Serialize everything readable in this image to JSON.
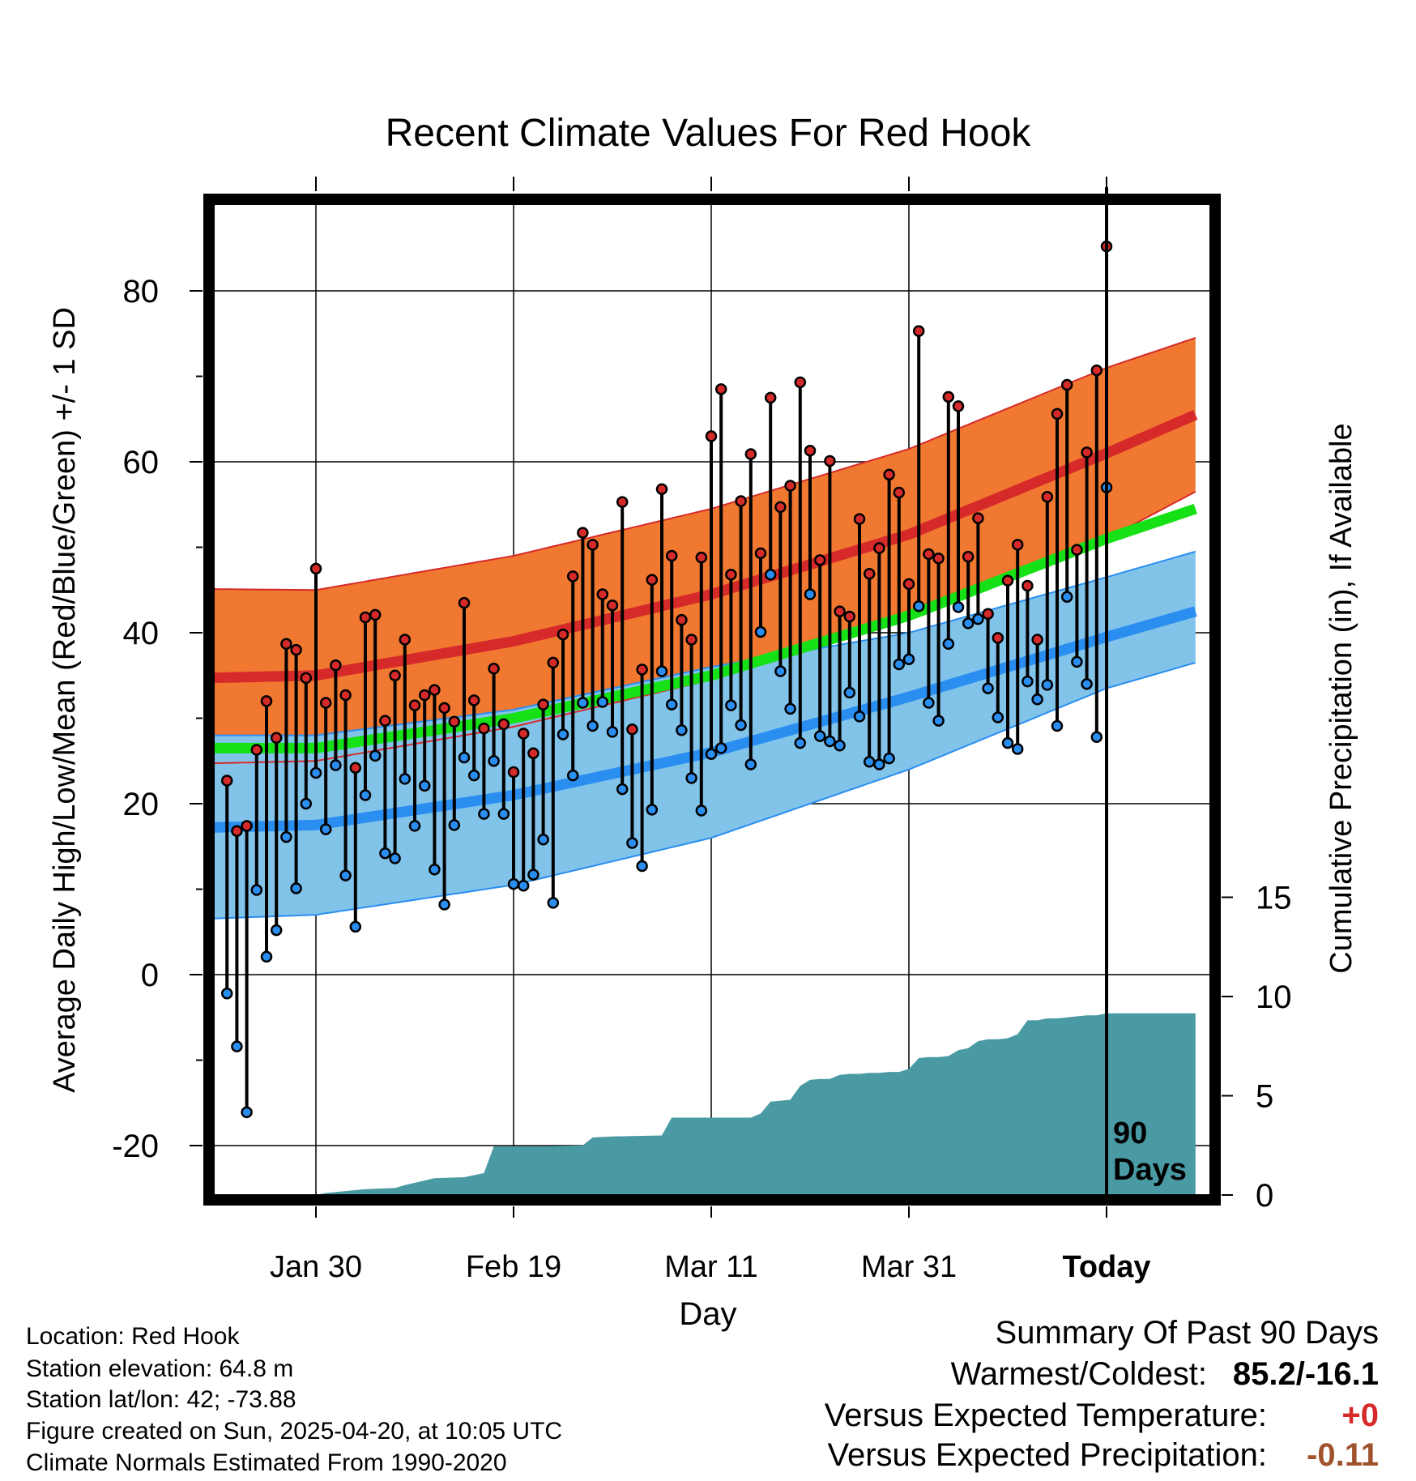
{
  "chart_data": {
    "type": "line",
    "title": "Recent Climate Values For Red Hook",
    "xlabel": "Day",
    "ylabel": "Average Daily High/Low/Mean (Red/Blue/Green) +/- 1 SD",
    "y2label": "Cumulative Precipitation (in), If Available",
    "ylim": [
      -25,
      90
    ],
    "y2lim": [
      0,
      18.9
    ],
    "xlim": [
      -99,
      0
    ],
    "x_tick_labels": [
      {
        "day": -80,
        "label": "Jan 30"
      },
      {
        "day": -60,
        "label": "Feb 19"
      },
      {
        "day": -40,
        "label": "Mar 11"
      },
      {
        "day": -20,
        "label": "Mar 31"
      },
      {
        "day": 0,
        "label": "Today"
      }
    ],
    "y_ticks": [
      -20,
      0,
      20,
      40,
      60,
      80
    ],
    "y2_ticks": [
      0,
      5,
      10,
      15
    ],
    "marker_label": "90\nDays",
    "colors": {
      "high_band": "#f07830",
      "high_mean": "#d62a2a",
      "low_band": "#82c3ea",
      "low_mean": "#2a8ef0",
      "mean": "#16e016",
      "precip": "#4a9aa4",
      "high_marker": "#d62a2a",
      "low_marker": "#2a8ef0"
    },
    "normals": {
      "day": [
        -99,
        -80,
        -60,
        -40,
        -20,
        0,
        9
      ],
      "high_mean": [
        34.5,
        35.0,
        39.0,
        44.5,
        51.5,
        61.0,
        65.5
      ],
      "high_upper": [
        45.2,
        45.0,
        49.0,
        54.5,
        61.5,
        71.0,
        74.5
      ],
      "high_lower": [
        24.5,
        25.0,
        29.0,
        34.5,
        41.5,
        51.0,
        56.5
      ],
      "low_mean": [
        17.0,
        17.5,
        21.0,
        26.0,
        32.5,
        39.5,
        42.5
      ],
      "low_upper": [
        28.0,
        28.0,
        31.0,
        36.0,
        40.0,
        46.5,
        49.5
      ],
      "low_lower": [
        6.2,
        7.0,
        10.5,
        16.0,
        24.0,
        33.5,
        36.5
      ],
      "mean": [
        26.5,
        26.5,
        30.0,
        35.0,
        42.0,
        51.0,
        54.5
      ]
    },
    "daily": [
      {
        "day": -89,
        "high": 22.7,
        "low": -2.2
      },
      {
        "day": -88,
        "high": 16.8,
        "low": -8.4
      },
      {
        "day": -87,
        "high": 17.4,
        "low": -16.1
      },
      {
        "day": -86,
        "high": 26.3,
        "low": 9.9
      },
      {
        "day": -85,
        "high": 32.0,
        "low": 2.1
      },
      {
        "day": -84,
        "high": 27.7,
        "low": 5.2
      },
      {
        "day": -83,
        "high": 38.7,
        "low": 16.1
      },
      {
        "day": -82,
        "high": 38.0,
        "low": 10.1
      },
      {
        "day": -81,
        "high": 34.7,
        "low": 20.0
      },
      {
        "day": -80,
        "high": 47.5,
        "low": 23.6
      },
      {
        "day": -79,
        "high": 31.8,
        "low": 17.0
      },
      {
        "day": -78,
        "high": 36.2,
        "low": 24.5
      },
      {
        "day": -77,
        "high": 32.7,
        "low": 11.6
      },
      {
        "day": -76,
        "high": 24.2,
        "low": 5.6
      },
      {
        "day": -75,
        "high": 41.8,
        "low": 21.0
      },
      {
        "day": -74,
        "high": 42.1,
        "low": 25.6
      },
      {
        "day": -73,
        "high": 29.7,
        "low": 14.2
      },
      {
        "day": -72,
        "high": 35.0,
        "low": 13.6
      },
      {
        "day": -71,
        "high": 39.2,
        "low": 22.9
      },
      {
        "day": -70,
        "high": 31.5,
        "low": 17.4
      },
      {
        "day": -69,
        "high": 32.7,
        "low": 22.1
      },
      {
        "day": -68,
        "high": 33.3,
        "low": 12.3
      },
      {
        "day": -67,
        "high": 31.2,
        "low": 8.2
      },
      {
        "day": -66,
        "high": 29.6,
        "low": 17.5
      },
      {
        "day": -65,
        "high": 43.5,
        "low": 25.4
      },
      {
        "day": -64,
        "high": 32.1,
        "low": 23.3
      },
      {
        "day": -63,
        "high": 28.8,
        "low": 18.8
      },
      {
        "day": -62,
        "high": 35.8,
        "low": 25.0
      },
      {
        "day": -61,
        "high": 29.3,
        "low": 18.8
      },
      {
        "day": -60,
        "high": 23.7,
        "low": 10.6
      },
      {
        "day": -59,
        "high": 28.2,
        "low": 10.4
      },
      {
        "day": -58,
        "high": 25.9,
        "low": 11.7
      },
      {
        "day": -57,
        "high": 31.6,
        "low": 15.8
      },
      {
        "day": -56,
        "high": 36.5,
        "low": 8.4
      },
      {
        "day": -55,
        "high": 39.8,
        "low": 28.1
      },
      {
        "day": -54,
        "high": 46.6,
        "low": 23.3
      },
      {
        "day": -53,
        "high": 51.7,
        "low": 31.8
      },
      {
        "day": -52,
        "high": 50.3,
        "low": 29.1
      },
      {
        "day": -51,
        "high": 44.5,
        "low": 31.9
      },
      {
        "day": -50,
        "high": 43.2,
        "low": 28.4
      },
      {
        "day": -49,
        "high": 55.3,
        "low": 21.7
      },
      {
        "day": -48,
        "high": 28.7,
        "low": 15.4
      },
      {
        "day": -47,
        "high": 35.7,
        "low": 12.7
      },
      {
        "day": -46,
        "high": 46.2,
        "low": 19.3
      },
      {
        "day": -45,
        "high": 56.8,
        "low": 35.5
      },
      {
        "day": -44,
        "high": 49.0,
        "low": 31.6
      },
      {
        "day": -43,
        "high": 41.5,
        "low": 28.6
      },
      {
        "day": -42,
        "high": 39.2,
        "low": 23.0
      },
      {
        "day": -41,
        "high": 48.8,
        "low": 19.2
      },
      {
        "day": -40,
        "high": 63.0,
        "low": 25.8
      },
      {
        "day": -39,
        "high": 68.5,
        "low": 26.5
      },
      {
        "day": -38,
        "high": 46.8,
        "low": 31.5
      },
      {
        "day": -37,
        "high": 55.4,
        "low": 29.2
      },
      {
        "day": -36,
        "high": 60.9,
        "low": 24.6
      },
      {
        "day": -35,
        "high": 49.3,
        "low": 40.1
      },
      {
        "day": -34,
        "high": 67.5,
        "low": 46.8
      },
      {
        "day": -33,
        "high": 54.7,
        "low": 35.5
      },
      {
        "day": -32,
        "high": 57.2,
        "low": 31.1
      },
      {
        "day": -31,
        "high": 69.3,
        "low": 27.1
      },
      {
        "day": -30,
        "high": 61.3,
        "low": 44.5
      },
      {
        "day": -29,
        "high": 48.5,
        "low": 27.9
      },
      {
        "day": -28,
        "high": 60.1,
        "low": 27.3
      },
      {
        "day": -27,
        "high": 42.5,
        "low": 26.8
      },
      {
        "day": -26,
        "high": 41.9,
        "low": 33.0
      },
      {
        "day": -25,
        "high": 53.3,
        "low": 30.2
      },
      {
        "day": -24,
        "high": 46.9,
        "low": 24.9
      },
      {
        "day": -23,
        "high": 49.9,
        "low": 24.6
      },
      {
        "day": -22,
        "high": 58.5,
        "low": 25.3
      },
      {
        "day": -21,
        "high": 56.4,
        "low": 36.3
      },
      {
        "day": -20,
        "high": 45.7,
        "low": 36.9
      },
      {
        "day": -19,
        "high": 75.3,
        "low": 43.1
      },
      {
        "day": -18,
        "high": 49.2,
        "low": 31.8
      },
      {
        "day": -17,
        "high": 48.7,
        "low": 29.7
      },
      {
        "day": -16,
        "high": 67.6,
        "low": 38.7
      },
      {
        "day": -15,
        "high": 66.5,
        "low": 43.0
      },
      {
        "day": -14,
        "high": 48.9,
        "low": 41.1
      },
      {
        "day": -13,
        "high": 53.4,
        "low": 41.6
      },
      {
        "day": -12,
        "high": 42.2,
        "low": 33.5
      },
      {
        "day": -11,
        "high": 39.4,
        "low": 30.1
      },
      {
        "day": -10,
        "high": 46.1,
        "low": 27.1
      },
      {
        "day": -9,
        "high": 50.3,
        "low": 26.4
      },
      {
        "day": -8,
        "high": 45.5,
        "low": 34.3
      },
      {
        "day": -7,
        "high": 39.2,
        "low": 32.2
      },
      {
        "day": -6,
        "high": 55.9,
        "low": 33.9
      },
      {
        "day": -5,
        "high": 65.6,
        "low": 29.1
      },
      {
        "day": -4,
        "high": 69.0,
        "low": 44.2
      },
      {
        "day": -3,
        "high": 49.7,
        "low": 36.6
      },
      {
        "day": -2,
        "high": 61.1,
        "low": 34.0
      },
      {
        "day": -1,
        "high": 70.7,
        "low": 27.8
      },
      {
        "day": 0,
        "high": 85.2,
        "low": 57.0
      }
    ],
    "precip_cumulative": {
      "day": [
        -99,
        -80,
        -79,
        -75,
        -72,
        -71,
        -68,
        -65,
        -64,
        -63,
        -62,
        -58,
        -53,
        -52,
        -50,
        -45,
        -44,
        -40,
        -36,
        -35,
        -34,
        -33,
        -32,
        -31,
        -30,
        -29,
        -28,
        -27,
        -26,
        -25,
        -24,
        -23,
        -22,
        -21,
        -20,
        -19,
        -18,
        -17,
        -16,
        -15,
        -14,
        -13,
        -12,
        -11,
        -10,
        -9,
        -8,
        -7,
        -6,
        -5,
        -4,
        -3,
        -2,
        -1,
        0,
        9
      ],
      "value": [
        0,
        0,
        0.1,
        0.3,
        0.35,
        0.5,
        0.85,
        0.9,
        1.0,
        1.1,
        2.45,
        2.45,
        2.5,
        2.9,
        2.95,
        3.0,
        3.9,
        3.9,
        3.9,
        4.1,
        4.7,
        4.75,
        4.8,
        5.5,
        5.8,
        5.85,
        5.85,
        6.05,
        6.1,
        6.1,
        6.15,
        6.15,
        6.2,
        6.2,
        6.35,
        6.9,
        6.95,
        6.95,
        7.0,
        7.3,
        7.4,
        7.75,
        7.85,
        7.85,
        7.9,
        8.1,
        8.8,
        8.8,
        8.9,
        8.9,
        8.95,
        9.0,
        9.05,
        9.05,
        9.15,
        9.15
      ]
    }
  },
  "footer_left": [
    "Location: Red Hook",
    "Station elevation: 64.8 m",
    "Station lat/lon: 42; -73.88",
    "Figure created on Sun, 2025-04-20, at 10:05 UTC",
    "Climate Normals Estimated From 1990-2020"
  ],
  "summary": {
    "heading": "Summary Of Past 90 Days",
    "warm_cold_label": "Warmest/Coldest:",
    "warm_cold_value": "85.2/-16.1",
    "temp_label": "Versus Expected Temperature:",
    "temp_value": "+0",
    "temp_color": "#d62a2a",
    "precip_label": "Versus Expected Precipitation:",
    "precip_value": "-0.11",
    "precip_color": "#a0522d"
  }
}
